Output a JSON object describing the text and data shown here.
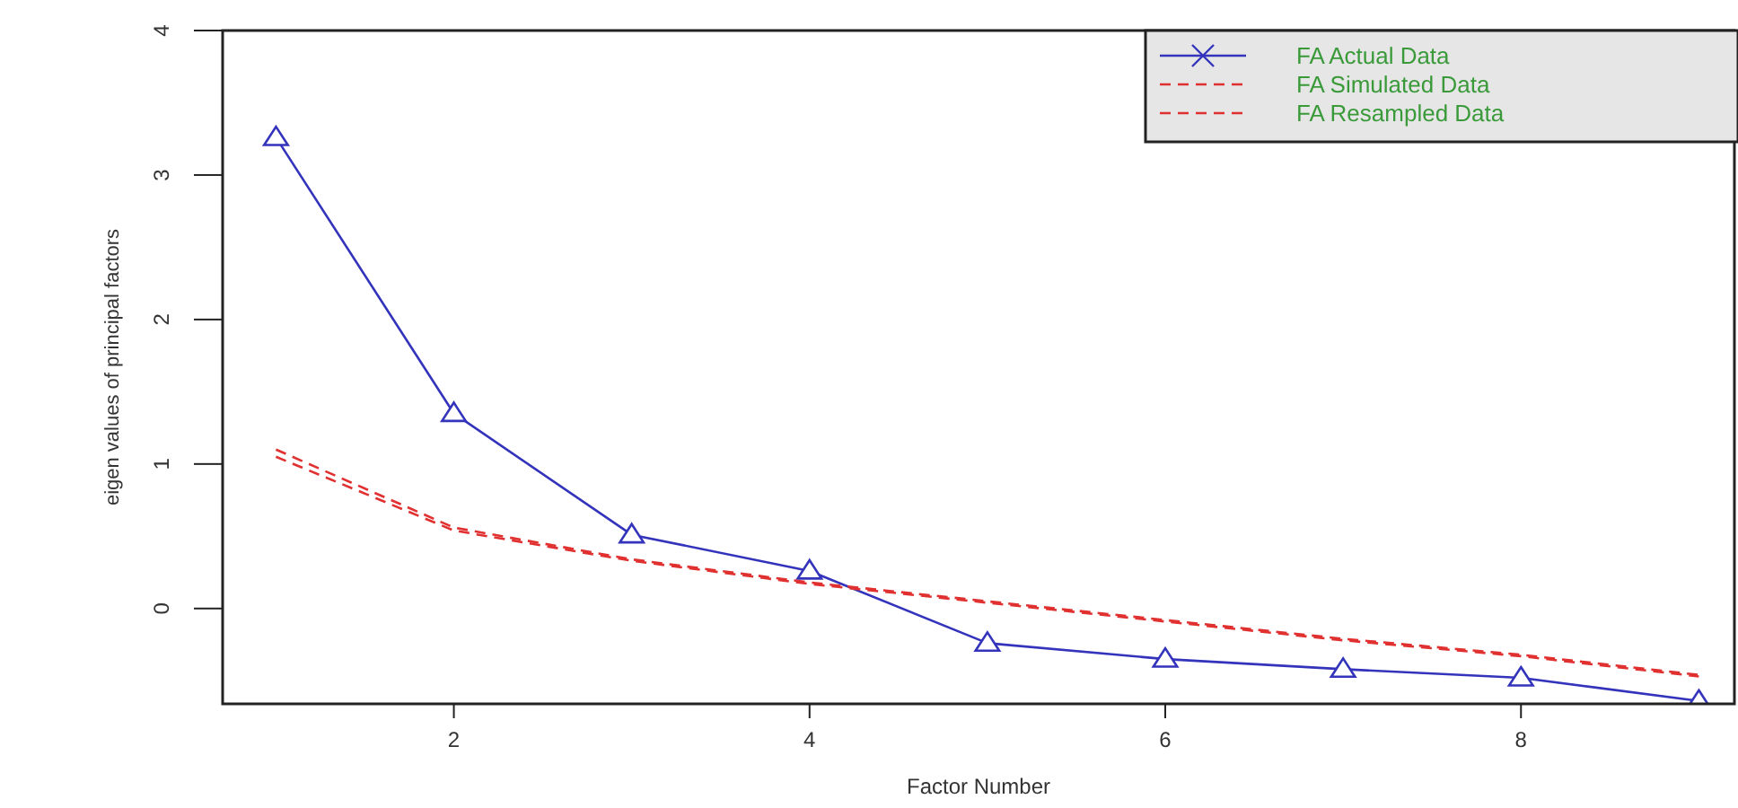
{
  "chart_data": {
    "type": "line",
    "xlabel": "Factor Number",
    "ylabel": "eigen values of principal factors",
    "x": [
      1,
      2,
      3,
      4,
      5,
      6,
      7,
      8,
      9
    ],
    "xlim": [
      0.7,
      9.2
    ],
    "ylim": [
      -0.66,
      4.0
    ],
    "xticks": [
      2,
      4,
      6,
      8
    ],
    "yticks": [
      0,
      1,
      2,
      3,
      4
    ],
    "grid": false,
    "legend": "top right",
    "series": [
      {
        "name": "FA  Actual Data",
        "color": "#3333bb",
        "marker": "triangle",
        "line_style": "solid",
        "values": [
          3.26,
          1.35,
          0.51,
          0.26,
          -0.24,
          -0.35,
          -0.42,
          -0.48,
          -0.64
        ]
      },
      {
        "name": "FA  Simulated Data",
        "color": "#e03030",
        "marker": "none",
        "line_style": "dashed",
        "values": [
          1.1,
          0.56,
          0.34,
          0.18,
          0.05,
          -0.08,
          -0.21,
          -0.32,
          -0.46
        ]
      },
      {
        "name": "FA  Resampled Data",
        "color": "#e03030",
        "marker": "none",
        "line_style": "dashed",
        "values": [
          1.05,
          0.54,
          0.33,
          0.17,
          0.04,
          -0.09,
          -0.22,
          -0.33,
          -0.47
        ]
      }
    ]
  }
}
